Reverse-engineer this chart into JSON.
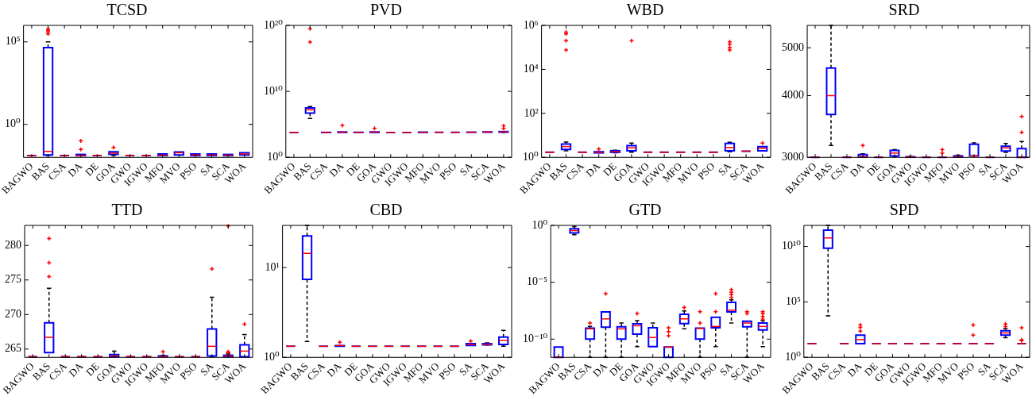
{
  "chart_data": [
    {
      "type": "box",
      "title": "TCSD",
      "log": true,
      "grid": false,
      "ylim": [
        0.01,
        1000000
      ],
      "yticks": [
        {
          "value": 1,
          "label": "10⁰"
        },
        {
          "value": 100000,
          "label": "10⁵"
        }
      ],
      "categories": [
        "BAGWO",
        "BAS",
        "CSA",
        "DA",
        "DE",
        "GOA",
        "GWO",
        "IGWO",
        "MFO",
        "MVO",
        "PSO",
        "SA",
        "SCA",
        "WOA"
      ],
      "boxes": [
        {
          "low": 0.0127,
          "q1": 0.0127,
          "median": 0.0127,
          "q3": 0.0127,
          "high": 0.0127
        },
        {
          "low": 0.013,
          "q1": 0.014,
          "median": 0.023,
          "q3": 45000,
          "high": 100000,
          "outliers": [
            300000,
            400000,
            500000,
            600000
          ]
        },
        {
          "low": 0.0127,
          "q1": 0.0127,
          "median": 0.0127,
          "q3": 0.0127,
          "high": 0.0127
        },
        {
          "low": 0.0127,
          "q1": 0.0127,
          "median": 0.013,
          "q3": 0.015,
          "high": 0.015,
          "outliers": [
            0.03,
            0.1
          ]
        },
        {
          "low": 0.013,
          "q1": 0.013,
          "median": 0.013,
          "q3": 0.013,
          "high": 0.013
        },
        {
          "low": 0.013,
          "q1": 0.015,
          "median": 0.018,
          "q3": 0.022,
          "high": 0.022,
          "outliers": [
            0.04
          ]
        },
        {
          "low": 0.013,
          "q1": 0.013,
          "median": 0.013,
          "q3": 0.013,
          "high": 0.013
        },
        {
          "low": 0.013,
          "q1": 0.013,
          "median": 0.013,
          "q3": 0.013,
          "high": 0.013
        },
        {
          "low": 0.0127,
          "q1": 0.0127,
          "median": 0.0135,
          "q3": 0.016,
          "high": 0.016
        },
        {
          "low": 0.014,
          "q1": 0.014,
          "median": 0.019,
          "q3": 0.021,
          "high": 0.021
        },
        {
          "low": 0.0127,
          "q1": 0.0127,
          "median": 0.014,
          "q3": 0.016,
          "high": 0.016
        },
        {
          "low": 0.0127,
          "q1": 0.0127,
          "median": 0.014,
          "q3": 0.016,
          "high": 0.016
        },
        {
          "low": 0.0127,
          "q1": 0.0127,
          "median": 0.0135,
          "q3": 0.015,
          "high": 0.015
        },
        {
          "low": 0.014,
          "q1": 0.014,
          "median": 0.016,
          "q3": 0.019,
          "high": 0.019
        }
      ]
    },
    {
      "type": "box",
      "title": "PVD",
      "log": true,
      "grid": false,
      "ylim": [
        1,
        1e+20
      ],
      "yticks": [
        {
          "value": 1,
          "label": "10⁰"
        },
        {
          "value": 10000000000.0,
          "label": "10¹⁰"
        },
        {
          "value": 1e+20,
          "label": "10²⁰"
        }
      ],
      "categories": [
        "BAGWO",
        "BAS",
        "CSA",
        "DA",
        "DE",
        "GOA",
        "GWO",
        "IGWO",
        "MFO",
        "MVO",
        "PSO",
        "SA",
        "SCA",
        "WOA"
      ],
      "boxes": [
        {
          "low": 5900,
          "q1": 5900,
          "median": 5900,
          "q3": 5900,
          "high": 5900
        },
        {
          "low": 800000,
          "q1": 5000000,
          "median": 16000000,
          "q3": 30000000,
          "high": 50000000,
          "outliers": [
            3e+17,
            3e+19
          ]
        },
        {
          "low": 5800,
          "q1": 5900,
          "median": 5900,
          "q3": 6000,
          "high": 6000
        },
        {
          "low": 6000,
          "q1": 6000,
          "median": 6500,
          "q3": 7000,
          "high": 7000,
          "outliers": [
            70000
          ]
        },
        {
          "low": 5900,
          "q1": 6000,
          "median": 6000,
          "q3": 6200,
          "high": 6200
        },
        {
          "low": 5900,
          "q1": 5900,
          "median": 6500,
          "q3": 7000,
          "high": 7000,
          "outliers": [
            25000
          ]
        },
        {
          "low": 5900,
          "q1": 5900,
          "median": 5900,
          "q3": 5900,
          "high": 5900
        },
        {
          "low": 5800,
          "q1": 5800,
          "median": 5800,
          "q3": 5800,
          "high": 5800
        },
        {
          "low": 6000,
          "q1": 6000,
          "median": 6200,
          "q3": 6500,
          "high": 6500
        },
        {
          "low": 6300,
          "q1": 6300,
          "median": 6300,
          "q3": 6300,
          "high": 6300
        },
        {
          "low": 6000,
          "q1": 6000,
          "median": 6000,
          "q3": 6000,
          "high": 6000
        },
        {
          "low": 6300,
          "q1": 6300,
          "median": 6300,
          "q3": 6500,
          "high": 6500
        },
        {
          "low": 6500,
          "q1": 6500,
          "median": 6800,
          "q3": 7200,
          "high": 7200
        },
        {
          "low": 6000,
          "q1": 6500,
          "median": 7000,
          "q3": 8000,
          "high": 8000,
          "outliers": [
            25000,
            60000
          ]
        }
      ]
    },
    {
      "type": "box",
      "title": "WBD",
      "log": true,
      "grid": false,
      "ylim": [
        1,
        1000000
      ],
      "yticks": [
        {
          "value": 1,
          "label": "10⁰"
        },
        {
          "value": 100,
          "label": "10²"
        },
        {
          "value": 10000,
          "label": "10⁴"
        },
        {
          "value": 1000000,
          "label": "10⁶"
        }
      ],
      "categories": [
        "BAGWO",
        "BAS",
        "CSA",
        "DA",
        "DE",
        "GOA",
        "GWO",
        "IGWO",
        "MFO",
        "MVO",
        "PSO",
        "SA",
        "SCA",
        "WOA"
      ],
      "boxes": [
        {
          "low": 1.7,
          "q1": 1.7,
          "median": 1.7,
          "q3": 1.7,
          "high": 1.7
        },
        {
          "low": 2,
          "q1": 2.3,
          "median": 3.1,
          "q3": 4,
          "high": 5,
          "outliers": [
            76000,
            200000,
            410000,
            490000
          ]
        },
        {
          "low": 1.7,
          "q1": 1.7,
          "median": 1.7,
          "q3": 1.7,
          "high": 1.7
        },
        {
          "low": 1.6,
          "q1": 1.6,
          "median": 1.7,
          "q3": 1.8,
          "high": 1.8,
          "outliers": [
            2.4
          ]
        },
        {
          "low": 1.6,
          "q1": 1.7,
          "median": 1.8,
          "q3": 2,
          "high": 2.1
        },
        {
          "low": 1.7,
          "q1": 2,
          "median": 2.7,
          "q3": 3.4,
          "high": 4.5,
          "outliers": [
            200000
          ]
        },
        {
          "low": 1.7,
          "q1": 1.7,
          "median": 1.7,
          "q3": 1.7,
          "high": 1.7
        },
        {
          "low": 1.7,
          "q1": 1.7,
          "median": 1.7,
          "q3": 1.7,
          "high": 1.7
        },
        {
          "low": 1.7,
          "q1": 1.7,
          "median": 1.7,
          "q3": 1.7,
          "high": 1.7
        },
        {
          "low": 1.7,
          "q1": 1.7,
          "median": 1.7,
          "q3": 1.7,
          "high": 1.7
        },
        {
          "low": 1.7,
          "q1": 1.7,
          "median": 1.7,
          "q3": 1.7,
          "high": 1.7
        },
        {
          "low": 1.8,
          "q1": 2,
          "median": 2.8,
          "q3": 4.3,
          "high": 4.8,
          "outliers": [
            76000,
            98000,
            140000,
            180000
          ]
        },
        {
          "low": 1.9,
          "q1": 1.9,
          "median": 1.9,
          "q3": 1.9,
          "high": 1.9
        },
        {
          "low": 2,
          "q1": 2,
          "median": 2.6,
          "q3": 3.1,
          "high": 3.1,
          "outliers": [
            4.5
          ]
        }
      ]
    },
    {
      "type": "box",
      "title": "SRD",
      "log": true,
      "grid": false,
      "ylim": [
        3000,
        5550
      ],
      "yticks": [
        3000,
        4000,
        5000
      ],
      "categories": [
        "BAGWO",
        "BAS",
        "CSA",
        "DA",
        "DE",
        "GOA",
        "GWO",
        "IGWO",
        "MFO",
        "MVO",
        "PSO",
        "SA",
        "SCA",
        "WOA"
      ],
      "boxes": [
        {
          "low": 3000,
          "q1": 3000,
          "median": 3000,
          "q3": 3000,
          "high": 3000
        },
        {
          "low": 3170,
          "q1": 3665,
          "median": 4000,
          "q3": 4550,
          "high": 5550
        },
        {
          "low": 3000,
          "q1": 3000,
          "median": 3000,
          "q3": 3000,
          "high": 3000
        },
        {
          "low": 3000,
          "q1": 3005,
          "median": 3010,
          "q3": 3040,
          "high": 3050,
          "outliers": [
            3170
          ]
        },
        {
          "low": 3000,
          "q1": 3000,
          "median": 3000,
          "q3": 3000,
          "high": 3000
        },
        {
          "low": 3010,
          "q1": 3020,
          "median": 3060,
          "q3": 3100,
          "high": 3110
        },
        {
          "low": 3000,
          "q1": 3002,
          "median": 3005,
          "q3": 3008,
          "high": 3010
        },
        {
          "low": 3000,
          "q1": 3000,
          "median": 3000,
          "q3": 3000,
          "high": 3000
        },
        {
          "low": 3000,
          "q1": 3000,
          "median": 3000,
          "q3": 3000,
          "high": 3000,
          "outliers": [
            3060,
            3110
          ]
        },
        {
          "low": 3000,
          "q1": 3005,
          "median": 3010,
          "q3": 3020,
          "high": 3030
        },
        {
          "low": 3020,
          "q1": 3020,
          "median": 3020,
          "q3": 3190,
          "high": 3210
        },
        {
          "low": 3000,
          "q1": 3000,
          "median": 3000,
          "q3": 3000,
          "high": 3000
        },
        {
          "low": 3070,
          "q1": 3090,
          "median": 3135,
          "q3": 3160,
          "high": 3200
        },
        {
          "low": 3000,
          "q1": 3000,
          "median": 3000,
          "q3": 3125,
          "high": 3230,
          "outliers": [
            3370,
            3630
          ]
        }
      ]
    },
    {
      "type": "box",
      "title": "TTD",
      "log": false,
      "grid": false,
      "ylim": [
        263.8,
        282.9
      ],
      "yticks": [
        265,
        270,
        275,
        280
      ],
      "categories": [
        "BAGWO",
        "BAS",
        "CSA",
        "DA",
        "DE",
        "GOA",
        "GWO",
        "IGWO",
        "MFO",
        "MVO",
        "PSO",
        "SA",
        "SCA",
        "WOA"
      ],
      "boxes": [
        {
          "low": 263.9,
          "q1": 263.9,
          "median": 263.9,
          "q3": 263.9,
          "high": 263.9
        },
        {
          "low": 264.5,
          "q1": 264.5,
          "median": 266.7,
          "q3": 268.8,
          "high": 273.8,
          "outliers": [
            275.5,
            277.5,
            281
          ]
        },
        {
          "low": 263.9,
          "q1": 263.9,
          "median": 263.9,
          "q3": 263.9,
          "high": 263.9
        },
        {
          "low": 263.9,
          "q1": 263.9,
          "median": 263.9,
          "q3": 263.9,
          "high": 263.9
        },
        {
          "low": 263.9,
          "q1": 263.9,
          "median": 263.9,
          "q3": 263.9,
          "high": 263.9
        },
        {
          "low": 263.9,
          "q1": 263.9,
          "median": 264,
          "q3": 264.2,
          "high": 264.7
        },
        {
          "low": 263.9,
          "q1": 263.9,
          "median": 263.9,
          "q3": 263.9,
          "high": 263.9
        },
        {
          "low": 263.9,
          "q1": 263.9,
          "median": 263.9,
          "q3": 263.9,
          "high": 263.9
        },
        {
          "low": 263.9,
          "q1": 263.9,
          "median": 263.9,
          "q3": 264,
          "high": 264.1,
          "outliers": [
            264.6
          ]
        },
        {
          "low": 263.9,
          "q1": 263.9,
          "median": 263.9,
          "q3": 263.9,
          "high": 263.9
        },
        {
          "low": 263.9,
          "q1": 263.9,
          "median": 263.9,
          "q3": 263.9,
          "high": 263.9
        },
        {
          "low": 263.9,
          "q1": 264,
          "median": 265.4,
          "q3": 267.9,
          "high": 272.5,
          "outliers": [
            276.6
          ]
        },
        {
          "low": 263.9,
          "q1": 263.9,
          "median": 264,
          "q3": 264.1,
          "high": 264.3,
          "outliers": [
            264.5,
            264.6,
            282.8
          ]
        },
        {
          "low": 263.9,
          "q1": 263.9,
          "median": 264.7,
          "q3": 265.6,
          "high": 267.1,
          "outliers": [
            268.6
          ]
        }
      ]
    },
    {
      "type": "box",
      "title": "CBD",
      "log": true,
      "grid": false,
      "ylim": [
        1,
        29.5
      ],
      "yticks": [
        {
          "value": 1,
          "label": "10⁰"
        },
        {
          "value": 10,
          "label": "10¹"
        }
      ],
      "categories": [
        "BAGWO",
        "BAS",
        "CSA",
        "DA",
        "DE",
        "GOA",
        "GWO",
        "IGWO",
        "MFO",
        "MVO",
        "PSO",
        "SA",
        "SCA",
        "WOA"
      ],
      "boxes": [
        {
          "low": 1.33,
          "q1": 1.33,
          "median": 1.33,
          "q3": 1.33,
          "high": 1.33
        },
        {
          "low": 1.5,
          "q1": 7.4,
          "median": 14.4,
          "q3": 22.5,
          "high": 29.5
        },
        {
          "low": 1.33,
          "q1": 1.33,
          "median": 1.33,
          "q3": 1.33,
          "high": 1.33
        },
        {
          "low": 1.33,
          "q1": 1.33,
          "median": 1.35,
          "q3": 1.35,
          "high": 1.35,
          "outliers": [
            1.47
          ]
        },
        {
          "low": 1.33,
          "q1": 1.33,
          "median": 1.33,
          "q3": 1.33,
          "high": 1.33
        },
        {
          "low": 1.33,
          "q1": 1.33,
          "median": 1.33,
          "q3": 1.33,
          "high": 1.33
        },
        {
          "low": 1.33,
          "q1": 1.33,
          "median": 1.33,
          "q3": 1.33,
          "high": 1.33
        },
        {
          "low": 1.33,
          "q1": 1.33,
          "median": 1.33,
          "q3": 1.33,
          "high": 1.33
        },
        {
          "low": 1.33,
          "q1": 1.33,
          "median": 1.33,
          "q3": 1.33,
          "high": 1.33
        },
        {
          "low": 1.33,
          "q1": 1.33,
          "median": 1.33,
          "q3": 1.33,
          "high": 1.33
        },
        {
          "low": 1.33,
          "q1": 1.33,
          "median": 1.33,
          "q3": 1.33,
          "high": 1.33
        },
        {
          "low": 1.36,
          "q1": 1.36,
          "median": 1.39,
          "q3": 1.42,
          "high": 1.42,
          "outliers": [
            1.52
          ]
        },
        {
          "low": 1.37,
          "q1": 1.38,
          "median": 1.4,
          "q3": 1.42,
          "high": 1.45
        },
        {
          "low": 1.33,
          "q1": 1.39,
          "median": 1.55,
          "q3": 1.68,
          "high": 2
        }
      ]
    },
    {
      "type": "box",
      "title": "GTD",
      "log": true,
      "grid": false,
      "ylim": [
        2.5e-12,
        1
      ],
      "yticks": [
        {
          "value": 1e-10,
          "label": "10⁻¹⁰"
        },
        {
          "value": 1e-05,
          "label": "10⁻⁵"
        },
        {
          "value": 1,
          "label": "10⁰"
        }
      ],
      "categories": [
        "BAGWO",
        "BAS",
        "CSA",
        "DA",
        "DE",
        "GOA",
        "GWO",
        "IGWO",
        "MFO",
        "MVO",
        "PSO",
        "SA",
        "SCA",
        "WOA"
      ],
      "boxes": [
        {
          "low": 2.5e-12,
          "q1": 2.5e-12,
          "median": 2.5e-12,
          "q3": 2e-11,
          "high": 2e-11
        },
        {
          "low": 0.15,
          "q1": 0.22,
          "median": 0.35,
          "q3": 0.5,
          "high": 0.8
        },
        {
          "low": 2.5e-12,
          "q1": 1e-10,
          "median": 8e-10,
          "q3": 9e-10,
          "high": 1.3e-09,
          "outliers": [
            2.6e-09
          ]
        },
        {
          "low": 2.5e-12,
          "q1": 1.1e-09,
          "median": 6e-09,
          "q3": 2.5e-08,
          "high": 2.5e-08,
          "outliers": [
            1e-06
          ]
        },
        {
          "low": 2.5e-12,
          "q1": 1e-10,
          "median": 8e-10,
          "q3": 1.2e-09,
          "high": 2.6e-09
        },
        {
          "low": 2.2e-11,
          "q1": 2.8e-10,
          "median": 1.5e-09,
          "q3": 2.2e-09,
          "high": 4.2e-09,
          "outliers": [
            1.8e-08
          ]
        },
        {
          "low": 2.2e-11,
          "q1": 2.2e-11,
          "median": 1.4e-10,
          "q3": 1e-09,
          "high": 2.6e-09
        },
        {
          "low": 2.5e-12,
          "q1": 2.5e-12,
          "median": 2e-11,
          "q3": 2e-11,
          "high": 2e-11,
          "outliers": [
            2e-10,
            4.6e-10,
            1e-09
          ]
        },
        {
          "low": 8e-10,
          "q1": 2.3e-09,
          "median": 6e-09,
          "q3": 1.5e-08,
          "high": 3e-08,
          "outliers": [
            5.9e-08
          ]
        },
        {
          "low": 2.5e-12,
          "q1": 1e-10,
          "median": 9e-10,
          "q3": 9e-10,
          "high": 9e-10,
          "outliers": [
            2.6e-09,
            2.6e-08
          ]
        },
        {
          "low": 2.2e-11,
          "q1": 1e-09,
          "median": 1.3e-09,
          "q3": 8.5e-09,
          "high": 8.5e-09,
          "outliers": [
            2.6e-08,
            1e-06
          ]
        },
        {
          "low": 2.6e-09,
          "q1": 2.5e-08,
          "median": 3.5e-08,
          "q3": 1.7e-07,
          "high": 2.9e-07,
          "outliers": [
            4.7e-07,
            8.3e-07,
            1.3e-06,
            2.2e-06
          ]
        },
        {
          "low": 2.5e-12,
          "q1": 1.2e-09,
          "median": 2.6e-09,
          "q3": 3.7e-09,
          "high": 3.7e-09,
          "outliers": [
            1.8e-08,
            2.6e-08
          ]
        },
        {
          "low": 2.2e-11,
          "q1": 6.5e-10,
          "median": 1.3e-09,
          "q3": 2.6e-09,
          "high": 4.2e-09,
          "outliers": [
            5.9e-09,
            1e-08,
            1.7e-08,
            2.6e-08
          ]
        }
      ]
    },
    {
      "type": "box",
      "title": "SPD",
      "log": true,
      "grid": false,
      "ylim": [
        1,
        800000000000
      ],
      "yticks": [
        {
          "value": 1,
          "label": "10⁰"
        },
        {
          "value": 100000,
          "label": "10⁵"
        },
        {
          "value": 10000000000,
          "label": "10¹⁰"
        }
      ],
      "categories": [
        "BAGWO",
        "BAS",
        "CSA",
        "DA",
        "DE",
        "GOA",
        "GWO",
        "IGWO",
        "MFO",
        "MVO",
        "PSO",
        "SA",
        "SCA",
        "WOA"
      ],
      "boxes": [
        {
          "low": 17,
          "q1": 17,
          "median": 17,
          "q3": 17,
          "high": 17
        },
        {
          "low": 5600,
          "q1": 7000000000,
          "median": 59000000000,
          "q3": 300000000000,
          "high": 800000000000
        },
        {
          "low": 17,
          "q1": 17,
          "median": 17,
          "q3": 17,
          "high": 17
        },
        {
          "low": 17,
          "q1": 17,
          "median": 40,
          "q3": 100,
          "high": 100,
          "outliers": [
            230,
            500,
            840
          ]
        },
        {
          "low": 17,
          "q1": 17,
          "median": 17,
          "q3": 17,
          "high": 17
        },
        {
          "low": 17,
          "q1": 17,
          "median": 17,
          "q3": 17,
          "high": 17
        },
        {
          "low": 17,
          "q1": 17,
          "median": 17,
          "q3": 17,
          "high": 17
        },
        {
          "low": 17,
          "q1": 17,
          "median": 17,
          "q3": 17,
          "high": 17
        },
        {
          "low": 17,
          "q1": 17,
          "median": 17,
          "q3": 17,
          "high": 17
        },
        {
          "low": 17,
          "q1": 17,
          "median": 17,
          "q3": 17,
          "high": 17
        },
        {
          "low": 17,
          "q1": 17,
          "median": 17,
          "q3": 17,
          "high": 17,
          "outliers": [
            100,
            840
          ]
        },
        {
          "low": 17,
          "q1": 17,
          "median": 17,
          "q3": 17,
          "high": 17
        },
        {
          "low": 60,
          "q1": 100,
          "median": 160,
          "q3": 250,
          "high": 400,
          "outliers": [
            600,
            1000
          ]
        },
        {
          "low": 17,
          "q1": 17,
          "median": 17,
          "q3": 17,
          "high": 17,
          "outliers": [
            32,
            38,
            470
          ]
        }
      ]
    }
  ]
}
